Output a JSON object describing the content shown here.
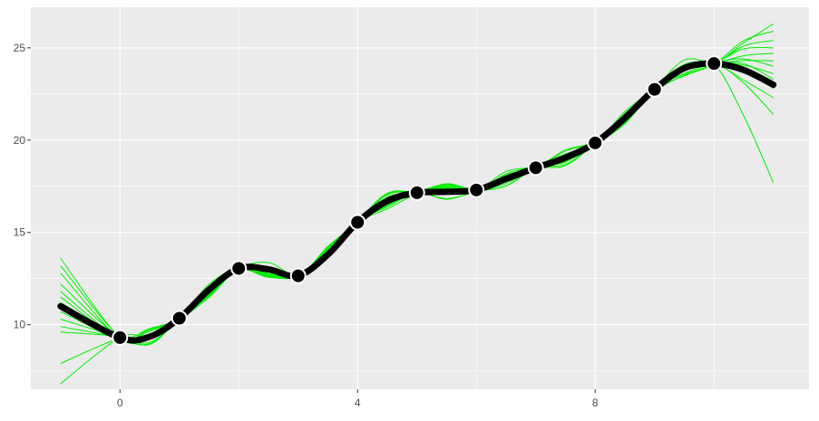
{
  "chart_data": {
    "type": "line",
    "title": "",
    "xlabel": "",
    "ylabel": "",
    "xlim": [
      -1.5,
      11.6
    ],
    "ylim": [
      6.5,
      27.2
    ],
    "x_ticks": [
      0,
      4,
      8
    ],
    "x_tick_labels": [
      "0",
      "4",
      "8"
    ],
    "y_ticks": [
      10,
      15,
      20,
      25
    ],
    "y_tick_labels": [
      "10",
      "15",
      "20",
      "25"
    ],
    "grid": true,
    "legend": "none",
    "colors": {
      "panel": "#ebebeb",
      "grid": "#ffffff",
      "samples": "#00ee00",
      "mean": "#000000",
      "points": "#000000"
    },
    "points": {
      "x": [
        0,
        1,
        2,
        3,
        4,
        5,
        6,
        7,
        8,
        9,
        10
      ],
      "y": [
        9.3,
        10.35,
        13.05,
        12.65,
        15.55,
        17.15,
        17.3,
        18.5,
        19.85,
        22.75,
        24.15
      ]
    },
    "mean_curve": {
      "x": [
        -1,
        0,
        0.5,
        1,
        1.5,
        2,
        2.5,
        3,
        3.5,
        4,
        4.5,
        5,
        5.5,
        6,
        6.5,
        7,
        7.5,
        8,
        8.5,
        9,
        9.5,
        10,
        10.5,
        11
      ],
      "y": [
        11.0,
        9.3,
        9.35,
        10.35,
        11.9,
        13.05,
        13.0,
        12.65,
        13.8,
        15.55,
        16.7,
        17.15,
        17.2,
        17.3,
        17.9,
        18.5,
        19.05,
        19.85,
        21.2,
        22.75,
        23.9,
        24.15,
        23.8,
        23.0
      ]
    },
    "samples": [
      {
        "y_start": 13.6,
        "y_end": 26.3
      },
      {
        "y_start": 13.2,
        "y_end": 17.7
      },
      {
        "y_start": 12.8,
        "y_end": 25.9
      },
      {
        "y_start": 12.2,
        "y_end": 21.4
      },
      {
        "y_start": 11.8,
        "y_end": 25.0
      },
      {
        "y_start": 11.5,
        "y_end": 22.3
      },
      {
        "y_start": 11.2,
        "y_end": 24.7
      },
      {
        "y_start": 11.0,
        "y_end": 23.0
      },
      {
        "y_start": 10.7,
        "y_end": 24.3
      },
      {
        "y_start": 10.3,
        "y_end": 23.6
      },
      {
        "y_start": 9.9,
        "y_end": 25.4
      },
      {
        "y_start": 9.6,
        "y_end": 22.8
      },
      {
        "y_start": 7.9,
        "y_end": 24.0
      },
      {
        "y_start": 6.8,
        "y_end": 23.3
      }
    ]
  }
}
